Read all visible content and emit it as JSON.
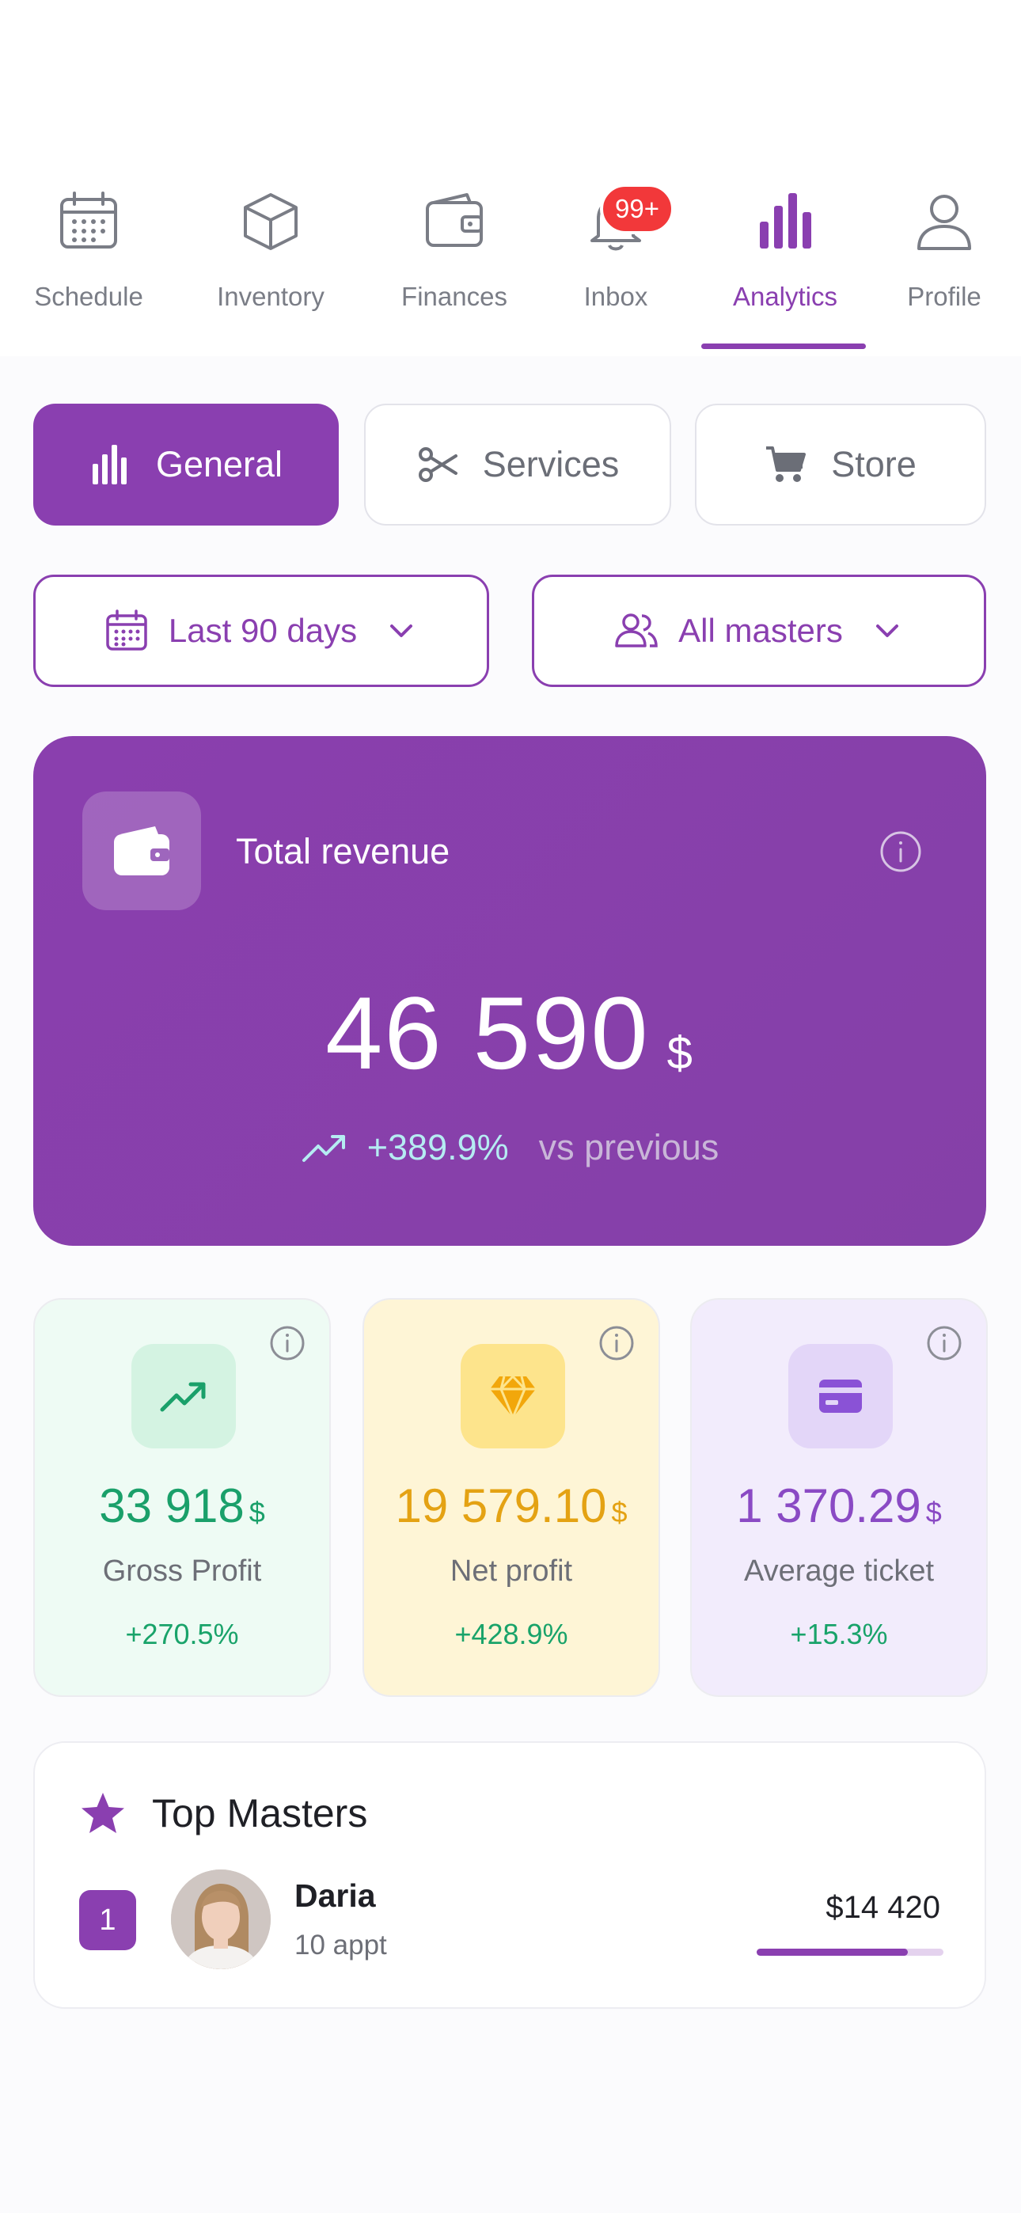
{
  "nav": {
    "items": [
      {
        "label": "Schedule",
        "icon": "calendar-icon"
      },
      {
        "label": "Inventory",
        "icon": "box-icon"
      },
      {
        "label": "Finances",
        "icon": "wallet-icon"
      },
      {
        "label": "Inbox",
        "icon": "bell-icon",
        "badge": "99+"
      },
      {
        "label": "Analytics",
        "icon": "bar-chart-icon",
        "active": true
      },
      {
        "label": "Profile",
        "icon": "user-icon"
      }
    ]
  },
  "segments": {
    "general": "General",
    "services": "Services",
    "store": "Store"
  },
  "filters": {
    "period": "Last 90 days",
    "masters": "All masters"
  },
  "revenue": {
    "title": "Total revenue",
    "amount": "46 590",
    "currency": "$",
    "change": "+389.9%",
    "compare": "vs previous"
  },
  "metrics": {
    "gross": {
      "value": "33 918",
      "currency": "$",
      "label": "Gross Profit",
      "change": "+270.5%"
    },
    "net": {
      "value": "19 579.10",
      "currency": "$",
      "label": "Net profit",
      "change": "+428.9%"
    },
    "avg": {
      "value": "1 370.29",
      "currency": "$",
      "label": "Average ticket",
      "change": "+15.3%"
    }
  },
  "top_masters": {
    "title": "Top Masters",
    "list": [
      {
        "rank": "1",
        "name": "Daria",
        "appointments": "10 appt",
        "amount": "$14 420",
        "share": 0.81
      }
    ]
  },
  "colors": {
    "accent": "#8a3fb0",
    "badge": "#f2383a",
    "positive": "#19a36a",
    "gross": "#1aa06a",
    "net": "#e4a213",
    "avg": "#8a4ac4"
  }
}
